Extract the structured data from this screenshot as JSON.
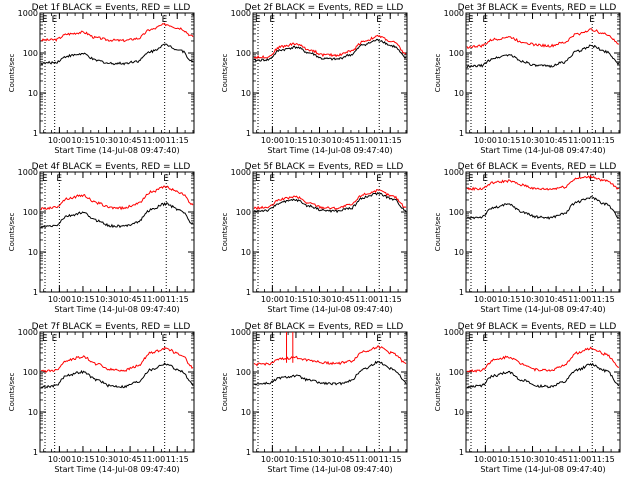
{
  "chart_data": [
    {
      "type": "line",
      "title": "Det 1f BLACK = Events, RED = LLD",
      "xlabel": "Start Time (14-Jul-08 09:47:40)",
      "ylabel": "Counts/sec",
      "yscale": "log",
      "ylim": [
        1,
        1000
      ],
      "x_ticks": [
        "10:00",
        "10:15",
        "10:30",
        "10:45",
        "11:00",
        "11:15"
      ],
      "y_ticks": [
        "1",
        "10",
        "100",
        "1000"
      ],
      "markers": [
        {
          "label": "E",
          "time": "09:57"
        },
        {
          "label": "E",
          "time": "11:07"
        }
      ],
      "series": [
        {
          "color": "#ff0000",
          "values": [
            210,
            215,
            300,
            330,
            240,
            210,
            205,
            230,
            390,
            520,
            420,
            260
          ]
        },
        {
          "color": "#000000",
          "values": [
            55,
            58,
            85,
            95,
            65,
            55,
            55,
            63,
            110,
            160,
            120,
            60
          ]
        }
      ]
    },
    {
      "type": "line",
      "title": "Det 2f BLACK = Events, RED = LLD",
      "xlabel": "Start Time (14-Jul-08 09:47:40)",
      "ylabel": "Counts/sec",
      "yscale": "log",
      "ylim": [
        1,
        1000
      ],
      "x_ticks": [
        "10:00",
        "10:15",
        "10:30",
        "10:45",
        "11:00",
        "11:15"
      ],
      "y_ticks": [
        "1",
        "10",
        "100",
        "1000"
      ],
      "markers": [
        {
          "label": "E",
          "time": "10:00"
        },
        {
          "label": "E",
          "time": "11:08"
        }
      ],
      "series": [
        {
          "color": "#ff0000",
          "values": [
            78,
            80,
            145,
            170,
            120,
            90,
            88,
            110,
            200,
            260,
            190,
            95
          ]
        },
        {
          "color": "#000000",
          "values": [
            65,
            68,
            120,
            140,
            100,
            72,
            70,
            90,
            165,
            210,
            150,
            75
          ]
        }
      ]
    },
    {
      "type": "line",
      "title": "Det 3f BLACK = Events, RED = LLD",
      "xlabel": "Start Time (14-Jul-08 09:47:40)",
      "ylabel": "Counts/sec",
      "yscale": "log",
      "ylim": [
        1,
        1000
      ],
      "x_ticks": [
        "10:00",
        "10:15",
        "10:30",
        "10:45",
        "11:00",
        "11:15"
      ],
      "y_ticks": [
        "1",
        "10",
        "100",
        "1000"
      ],
      "markers": [
        {
          "label": "E",
          "time": "10:00"
        },
        {
          "label": "E",
          "time": "11:08"
        }
      ],
      "series": [
        {
          "color": "#ff0000",
          "values": [
            140,
            150,
            220,
            250,
            190,
            160,
            150,
            180,
            300,
            380,
            300,
            170
          ]
        },
        {
          "color": "#000000",
          "values": [
            45,
            48,
            75,
            90,
            62,
            48,
            47,
            58,
            110,
            150,
            110,
            55
          ]
        }
      ]
    },
    {
      "type": "line",
      "title": "Det 4f BLACK = Events, RED = LLD",
      "xlabel": "Start Time (14-Jul-08 09:47:40)",
      "ylabel": "Counts/sec",
      "yscale": "log",
      "ylim": [
        1,
        1000
      ],
      "x_ticks": [
        "10:00",
        "10:15",
        "10:30",
        "10:45",
        "11:00",
        "11:15"
      ],
      "y_ticks": [
        "1",
        "10",
        "100",
        "1000"
      ],
      "markers": [
        {
          "label": "E",
          "time": "10:00"
        },
        {
          "label": "E",
          "time": "11:08"
        }
      ],
      "series": [
        {
          "color": "#ff0000",
          "values": [
            120,
            130,
            220,
            260,
            170,
            130,
            125,
            160,
            320,
            420,
            310,
            150
          ]
        },
        {
          "color": "#000000",
          "values": [
            42,
            45,
            80,
            95,
            62,
            45,
            44,
            56,
            115,
            160,
            115,
            50
          ]
        }
      ]
    },
    {
      "type": "line",
      "title": "Det 5f BLACK = Events, RED = LLD",
      "xlabel": "Start Time (14-Jul-08 09:47:40)",
      "ylabel": "Counts/sec",
      "yscale": "log",
      "ylim": [
        1,
        1000
      ],
      "x_ticks": [
        "10:00",
        "10:15",
        "10:30",
        "10:45",
        "11:00",
        "11:15"
      ],
      "y_ticks": [
        "1",
        "10",
        "100",
        "1000"
      ],
      "markers": [
        {
          "label": "E",
          "time": "10:00"
        },
        {
          "label": "E",
          "time": "11:08"
        }
      ],
      "series": [
        {
          "color": "#ff0000",
          "values": [
            125,
            130,
            210,
            240,
            165,
            130,
            125,
            150,
            280,
            340,
            250,
            130
          ]
        },
        {
          "color": "#000000",
          "values": [
            105,
            110,
            175,
            200,
            140,
            110,
            105,
            125,
            235,
            290,
            210,
            110
          ]
        }
      ]
    },
    {
      "type": "line",
      "title": "Det 6f BLACK = Events, RED = LLD",
      "xlabel": "Start Time (14-Jul-08 09:47:40)",
      "ylabel": "Counts/sec",
      "yscale": "log",
      "ylim": [
        1,
        1000
      ],
      "x_ticks": [
        "10:00",
        "10:15",
        "10:30",
        "10:45",
        "11:00",
        "11:15"
      ],
      "y_ticks": [
        "1",
        "10",
        "100",
        "1000"
      ],
      "markers": [
        {
          "label": "E",
          "time": "10:00"
        },
        {
          "label": "E",
          "time": "11:08"
        }
      ],
      "series": [
        {
          "color": "#ff0000",
          "values": [
            380,
            380,
            550,
            600,
            470,
            380,
            375,
            420,
            700,
            760,
            600,
            390
          ]
        },
        {
          "color": "#000000",
          "values": [
            70,
            75,
            130,
            155,
            100,
            75,
            72,
            90,
            180,
            230,
            160,
            75
          ]
        }
      ]
    },
    {
      "type": "line",
      "title": "Det 7f BLACK = Events, RED = LLD",
      "xlabel": "Start Time (14-Jul-08 09:47:40)",
      "ylabel": "Counts/sec",
      "yscale": "log",
      "ylim": [
        1,
        1000
      ],
      "x_ticks": [
        "10:00",
        "10:15",
        "10:30",
        "10:45",
        "11:00",
        "11:15"
      ],
      "y_ticks": [
        "1",
        "10",
        "100",
        "1000"
      ],
      "markers": [
        {
          "label": "E",
          "time": "09:57"
        },
        {
          "label": "E",
          "time": "11:07"
        }
      ],
      "series": [
        {
          "color": "#ff0000",
          "values": [
            105,
            110,
            200,
            240,
            160,
            115,
            110,
            140,
            300,
            390,
            280,
            130
          ]
        },
        {
          "color": "#000000",
          "values": [
            42,
            45,
            85,
            100,
            64,
            45,
            43,
            56,
            115,
            160,
            110,
            48
          ]
        }
      ]
    },
    {
      "type": "line",
      "title": "Det 8f BLACK = Events, RED = LLD",
      "xlabel": "Start Time (14-Jul-08 09:47:40)",
      "ylabel": "Counts/sec",
      "yscale": "log",
      "ylim": [
        1,
        1000
      ],
      "x_ticks": [
        "10:00",
        "10:15",
        "10:30",
        "10:45",
        "11:00",
        "11:15"
      ],
      "y_ticks": [
        "1",
        "10",
        "100",
        "1000"
      ],
      "markers": [
        {
          "label": "E",
          "time": "10:00"
        },
        {
          "label": "E",
          "time": "11:08"
        }
      ],
      "spikes": [
        {
          "time": "10:09",
          "value": 1000
        },
        {
          "time": "10:13",
          "value": 1000
        }
      ],
      "series": [
        {
          "color": "#ff0000",
          "values": [
            155,
            160,
            210,
            230,
            200,
            170,
            165,
            185,
            330,
            420,
            300,
            160
          ]
        },
        {
          "color": "#000000",
          "values": [
            50,
            52,
            72,
            80,
            62,
            52,
            50,
            60,
            120,
            175,
            120,
            55
          ]
        }
      ]
    },
    {
      "type": "line",
      "title": "Det 9f BLACK = Events, RED = LLD",
      "xlabel": "Start Time (14-Jul-08 09:47:40)",
      "ylabel": "Counts/sec",
      "yscale": "log",
      "ylim": [
        1,
        1000
      ],
      "x_ticks": [
        "10:00",
        "10:15",
        "10:30",
        "10:45",
        "11:00",
        "11:15"
      ],
      "y_ticks": [
        "1",
        "10",
        "100",
        "1000"
      ],
      "markers": [
        {
          "label": "E",
          "time": "10:00"
        },
        {
          "label": "E",
          "time": "11:08"
        }
      ],
      "series": [
        {
          "color": "#ff0000",
          "values": [
            105,
            110,
            200,
            240,
            160,
            115,
            110,
            140,
            300,
            390,
            280,
            130
          ]
        },
        {
          "color": "#000000",
          "values": [
            42,
            45,
            82,
            98,
            62,
            45,
            43,
            55,
            112,
            155,
            108,
            48
          ]
        }
      ]
    }
  ]
}
